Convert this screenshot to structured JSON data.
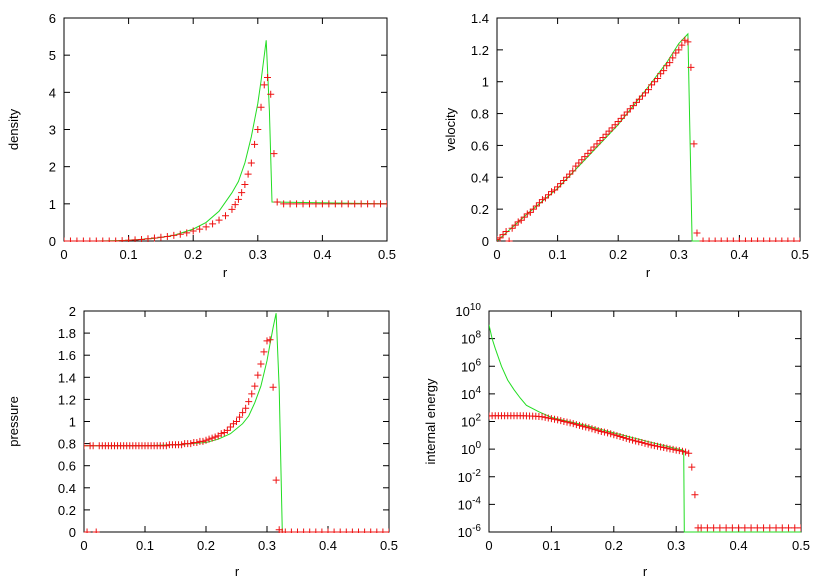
{
  "chart_data": [
    {
      "type": "line",
      "ylabel": "density",
      "xlabel": "r",
      "xlim": [
        0,
        0.5
      ],
      "ylim": [
        0,
        6
      ],
      "xticks": [
        "0",
        "0.1",
        "0.2",
        "0.3",
        "0.4",
        "0.5"
      ],
      "yticks": [
        "0",
        "1",
        "2",
        "3",
        "4",
        "5",
        "6"
      ],
      "log_y": false,
      "series": [
        {
          "style": "line",
          "color": "#22dd22",
          "x": [
            0,
            0.05,
            0.1,
            0.14,
            0.17,
            0.2,
            0.22,
            0.24,
            0.26,
            0.27,
            0.28,
            0.29,
            0.3,
            0.305,
            0.31,
            0.313,
            0.318,
            0.322,
            0.5
          ],
          "y": [
            0,
            0,
            0.02,
            0.07,
            0.15,
            0.32,
            0.5,
            0.8,
            1.3,
            1.6,
            2.1,
            2.8,
            3.7,
            4.3,
            5.0,
            5.4,
            3.5,
            1.05,
            1.0
          ]
        },
        {
          "style": "points",
          "color": "#ee1111",
          "x": [
            0,
            0.01,
            0.02,
            0.03,
            0.04,
            0.05,
            0.06,
            0.07,
            0.08,
            0.09,
            0.1,
            0.11,
            0.12,
            0.13,
            0.14,
            0.15,
            0.16,
            0.17,
            0.18,
            0.19,
            0.2,
            0.21,
            0.22,
            0.23,
            0.24,
            0.25,
            0.26,
            0.265,
            0.27,
            0.275,
            0.28,
            0.285,
            0.29,
            0.295,
            0.3,
            0.305,
            0.31,
            0.315,
            0.32,
            0.325,
            0.33,
            0.34,
            0.35,
            0.36,
            0.37,
            0.38,
            0.39,
            0.4,
            0.41,
            0.42,
            0.43,
            0.44,
            0.45,
            0.46,
            0.47,
            0.48,
            0.49,
            0.5
          ],
          "y": [
            0,
            0,
            0,
            0,
            0,
            0,
            0,
            0,
            0,
            0.01,
            0.02,
            0.03,
            0.04,
            0.06,
            0.08,
            0.1,
            0.12,
            0.15,
            0.18,
            0.22,
            0.27,
            0.32,
            0.38,
            0.46,
            0.56,
            0.68,
            0.85,
            0.98,
            1.12,
            1.3,
            1.52,
            1.8,
            2.1,
            2.6,
            3.0,
            3.6,
            4.2,
            4.4,
            3.95,
            2.35,
            1.05,
            1.0,
            1.0,
            1.0,
            1.0,
            1.0,
            1.0,
            1.0,
            1.0,
            1.0,
            1.0,
            1.0,
            1.0,
            1.0,
            1.0,
            1.0,
            1.0,
            1.0
          ]
        }
      ]
    },
    {
      "type": "line",
      "ylabel": "velocity",
      "xlabel": "r",
      "xlim": [
        0,
        0.5
      ],
      "ylim": [
        0,
        1.4
      ],
      "xticks": [
        "0",
        "0.1",
        "0.2",
        "0.3",
        "0.4",
        "0.5"
      ],
      "yticks": [
        "0",
        "0.2",
        "0.4",
        "0.6",
        "0.8",
        "1",
        "1.2",
        "1.4"
      ],
      "log_y": false,
      "series": [
        {
          "style": "line",
          "color": "#22dd22",
          "x": [
            0,
            0.05,
            0.1,
            0.15,
            0.2,
            0.25,
            0.28,
            0.3,
            0.31,
            0.315,
            0.322,
            0.5
          ],
          "y": [
            0,
            0.17,
            0.33,
            0.53,
            0.73,
            0.97,
            1.12,
            1.24,
            1.28,
            1.3,
            0,
            0
          ]
        },
        {
          "style": "points",
          "color": "#ee1111",
          "x": [
            0,
            0.005,
            0.01,
            0.015,
            0.02,
            0.025,
            0.03,
            0.035,
            0.04,
            0.045,
            0.05,
            0.055,
            0.06,
            0.065,
            0.07,
            0.075,
            0.08,
            0.085,
            0.09,
            0.095,
            0.1,
            0.105,
            0.11,
            0.115,
            0.12,
            0.125,
            0.13,
            0.135,
            0.14,
            0.145,
            0.15,
            0.155,
            0.16,
            0.165,
            0.17,
            0.175,
            0.18,
            0.185,
            0.19,
            0.195,
            0.2,
            0.205,
            0.21,
            0.215,
            0.22,
            0.225,
            0.23,
            0.235,
            0.24,
            0.245,
            0.25,
            0.255,
            0.26,
            0.265,
            0.27,
            0.275,
            0.28,
            0.285,
            0.29,
            0.295,
            0.3,
            0.305,
            0.31,
            0.315,
            0.32,
            0.325,
            0.33,
            0.34,
            0.35,
            0.36,
            0.37,
            0.38,
            0.39,
            0.4,
            0.41,
            0.42,
            0.43,
            0.44,
            0.45,
            0.46,
            0.47,
            0.48,
            0.49,
            0.5
          ],
          "y": [
            0.01,
            0.02,
            0.04,
            0.06,
            0.0,
            0.08,
            0.1,
            0.12,
            0.13,
            0.15,
            0.17,
            0.18,
            0.2,
            0.22,
            0.24,
            0.26,
            0.27,
            0.29,
            0.31,
            0.32,
            0.34,
            0.36,
            0.38,
            0.4,
            0.42,
            0.44,
            0.47,
            0.49,
            0.51,
            0.53,
            0.55,
            0.57,
            0.59,
            0.61,
            0.63,
            0.65,
            0.67,
            0.69,
            0.71,
            0.73,
            0.75,
            0.77,
            0.79,
            0.81,
            0.83,
            0.85,
            0.87,
            0.89,
            0.91,
            0.93,
            0.95,
            0.98,
            1.0,
            1.02,
            1.05,
            1.07,
            1.1,
            1.12,
            1.15,
            1.18,
            1.2,
            1.23,
            1.26,
            1.25,
            1.09,
            0.61,
            0.05,
            0,
            0,
            0,
            0,
            0,
            0,
            0,
            0,
            0,
            0,
            0,
            0,
            0,
            0,
            0,
            0,
            0
          ]
        }
      ]
    },
    {
      "type": "line",
      "ylabel": "pressure",
      "xlabel": "r",
      "xlim": [
        0,
        0.5
      ],
      "ylim": [
        0,
        2
      ],
      "xticks": [
        "0",
        "0.1",
        "0.2",
        "0.3",
        "0.4",
        "0.5"
      ],
      "yticks": [
        "0",
        "0.2",
        "0.4",
        "0.6",
        "0.8",
        "1",
        "1.2",
        "1.4",
        "1.6",
        "1.8",
        "2"
      ],
      "log_y": false,
      "series": [
        {
          "style": "line",
          "color": "#22dd22",
          "x": [
            0,
            0.05,
            0.1,
            0.15,
            0.2,
            0.22,
            0.24,
            0.26,
            0.27,
            0.28,
            0.29,
            0.3,
            0.305,
            0.31,
            0.315,
            0.32,
            0.325,
            0.5
          ],
          "y": [
            0.78,
            0.78,
            0.78,
            0.79,
            0.81,
            0.84,
            0.89,
            0.98,
            1.05,
            1.17,
            1.32,
            1.55,
            1.7,
            1.85,
            1.98,
            1.3,
            0.0,
            0.0
          ]
        },
        {
          "style": "points",
          "color": "#ee1111",
          "x": [
            0,
            0.005,
            0.01,
            0.015,
            0.02,
            0.025,
            0.03,
            0.035,
            0.04,
            0.045,
            0.05,
            0.055,
            0.06,
            0.065,
            0.07,
            0.075,
            0.08,
            0.085,
            0.09,
            0.095,
            0.1,
            0.105,
            0.11,
            0.115,
            0.12,
            0.125,
            0.13,
            0.135,
            0.14,
            0.145,
            0.15,
            0.155,
            0.16,
            0.165,
            0.17,
            0.175,
            0.18,
            0.185,
            0.19,
            0.195,
            0.2,
            0.205,
            0.21,
            0.215,
            0.22,
            0.225,
            0.23,
            0.235,
            0.24,
            0.245,
            0.25,
            0.255,
            0.26,
            0.265,
            0.27,
            0.275,
            0.28,
            0.285,
            0.29,
            0.295,
            0.3,
            0.305,
            0.31,
            0.315,
            0.32,
            0.325,
            0.33,
            0.34,
            0.35,
            0.36,
            0.37,
            0.38,
            0.39,
            0.4,
            0.41,
            0.42,
            0.43,
            0.44,
            0.45,
            0.46,
            0.47,
            0.48,
            0.49,
            0.5
          ],
          "y": [
            0.78,
            0,
            0.78,
            0.78,
            0,
            0.78,
            0.78,
            0.78,
            0.78,
            0.78,
            0.78,
            0.78,
            0.78,
            0.78,
            0.78,
            0.78,
            0.78,
            0.78,
            0.78,
            0.78,
            0.78,
            0.78,
            0.78,
            0.78,
            0.78,
            0.78,
            0.78,
            0.78,
            0.79,
            0.79,
            0.79,
            0.79,
            0.79,
            0.8,
            0.8,
            0.8,
            0.81,
            0.81,
            0.82,
            0.82,
            0.83,
            0.84,
            0.85,
            0.86,
            0.87,
            0.89,
            0.9,
            0.92,
            0.95,
            0.98,
            1.0,
            1.04,
            1.08,
            1.12,
            1.18,
            1.25,
            1.32,
            1.42,
            1.52,
            1.63,
            1.73,
            1.74,
            1.31,
            0.47,
            0.02,
            0,
            0,
            0,
            0,
            0,
            0,
            0,
            0,
            0,
            0,
            0,
            0,
            0,
            0,
            0,
            0,
            0,
            0,
            0
          ]
        }
      ]
    },
    {
      "type": "line",
      "ylabel": "internal energy",
      "xlabel": "r",
      "xlim": [
        0,
        0.5
      ],
      "ylim": [
        1e-06,
        10000000000.0
      ],
      "xticks": [
        "0",
        "0.1",
        "0.2",
        "0.3",
        "0.4",
        "0.5"
      ],
      "yticks": [
        {
          "base": "10",
          "exp": "-6"
        },
        {
          "base": "10",
          "exp": "-4"
        },
        {
          "base": "10",
          "exp": "-2"
        },
        {
          "base": "10",
          "exp": "0"
        },
        {
          "base": "10",
          "exp": "2"
        },
        {
          "base": "10",
          "exp": "4"
        },
        {
          "base": "10",
          "exp": "6"
        },
        {
          "base": "10",
          "exp": "8"
        },
        {
          "base": "10",
          "exp": "10"
        }
      ],
      "log_y": true,
      "series": [
        {
          "style": "line",
          "color": "#22dd22",
          "x": [
            0,
            0.005,
            0.01,
            0.02,
            0.03,
            0.04,
            0.05,
            0.06,
            0.08,
            0.1,
            0.12,
            0.15,
            0.2,
            0.25,
            0.3,
            0.31,
            0.312,
            0.313,
            0.5
          ],
          "y": [
            1000000000.0,
            100000000.0,
            20000000.0,
            1000000.0,
            100000.0,
            20000.0,
            5000.0,
            1500.0,
            500,
            200,
            120,
            60,
            15,
            4,
            1.1,
            0.9,
            0.8,
            1e-06,
            1e-06
          ]
        },
        {
          "style": "points",
          "color": "#ee1111",
          "x": [
            0,
            0.005,
            0.01,
            0.015,
            0.02,
            0.025,
            0.03,
            0.035,
            0.04,
            0.045,
            0.05,
            0.055,
            0.06,
            0.065,
            0.07,
            0.075,
            0.08,
            0.085,
            0.09,
            0.095,
            0.1,
            0.105,
            0.11,
            0.115,
            0.12,
            0.125,
            0.13,
            0.135,
            0.14,
            0.145,
            0.15,
            0.155,
            0.16,
            0.165,
            0.17,
            0.175,
            0.18,
            0.185,
            0.19,
            0.195,
            0.2,
            0.205,
            0.21,
            0.215,
            0.22,
            0.225,
            0.23,
            0.235,
            0.24,
            0.245,
            0.25,
            0.255,
            0.26,
            0.265,
            0.27,
            0.275,
            0.28,
            0.285,
            0.29,
            0.295,
            0.3,
            0.305,
            0.31,
            0.315,
            0.32,
            0.325,
            0.33,
            0.335,
            0.34,
            0.35,
            0.36,
            0.37,
            0.38,
            0.39,
            0.4,
            0.41,
            0.42,
            0.43,
            0.44,
            0.45,
            0.46,
            0.47,
            0.48,
            0.49,
            0.5
          ],
          "y": [
            250,
            260,
            260,
            260,
            260,
            260,
            260,
            260,
            260,
            260,
            260,
            260,
            255,
            250,
            245,
            240,
            230,
            220,
            200,
            180,
            160,
            145,
            130,
            115,
            100,
            90,
            80,
            70,
            60,
            52,
            45,
            40,
            35,
            30,
            26,
            22,
            19,
            17,
            15,
            13,
            11,
            9.5,
            8.2,
            7,
            6,
            5.2,
            4.5,
            3.9,
            3.4,
            3.0,
            2.6,
            2.3,
            2.0,
            1.8,
            1.6,
            1.45,
            1.3,
            1.18,
            1.05,
            0.95,
            0.85,
            0.78,
            0.7,
            0.62,
            0.5,
            0.05,
            0.0005,
            2e-06,
            2e-06,
            2e-06,
            2e-06,
            2e-06,
            2e-06,
            2e-06,
            2e-06,
            2e-06,
            2e-06,
            2e-06,
            2e-06,
            2e-06,
            2e-06,
            2e-06,
            2e-06,
            2e-06,
            2e-06
          ]
        }
      ]
    }
  ]
}
